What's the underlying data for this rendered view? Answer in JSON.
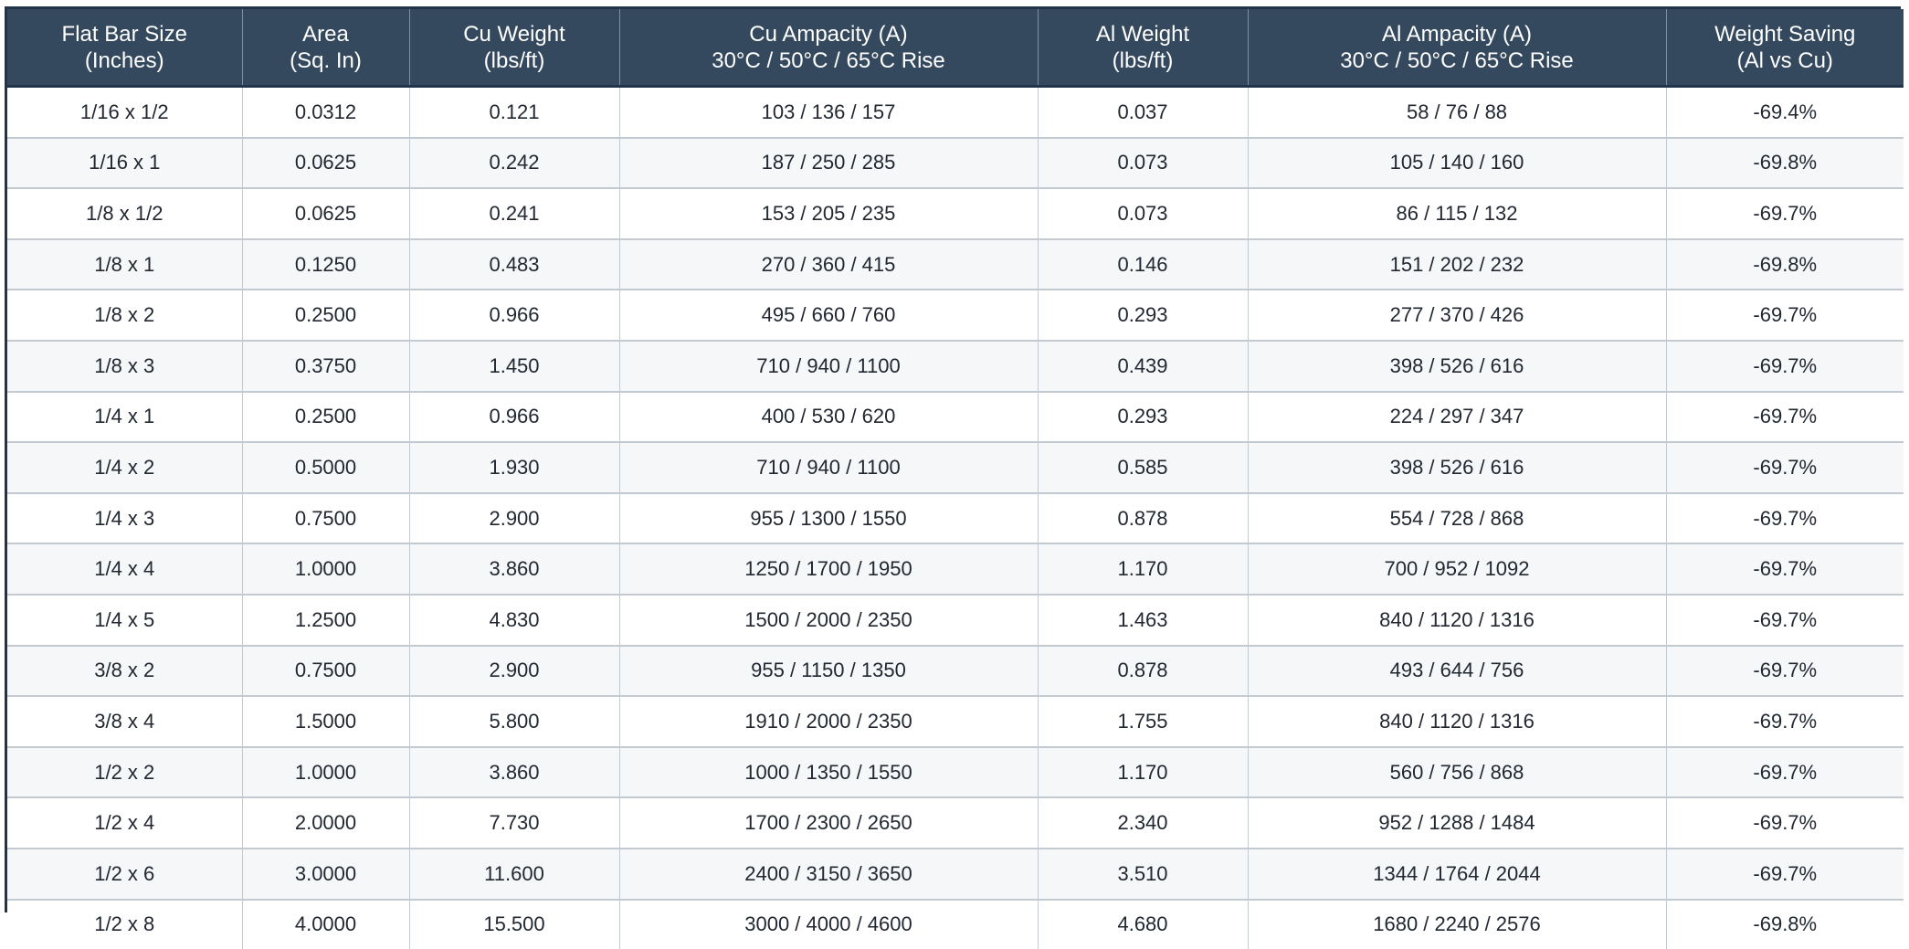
{
  "headers": [
    {
      "line1": "Flat Bar Size",
      "line2": "(Inches)"
    },
    {
      "line1": "Area",
      "line2": "(Sq. In)"
    },
    {
      "line1": "Cu Weight",
      "line2": "(lbs/ft)"
    },
    {
      "line1": "Cu Ampacity (A)",
      "line2": "30°C / 50°C / 65°C Rise"
    },
    {
      "line1": "Al Weight",
      "line2": "(lbs/ft)"
    },
    {
      "line1": "Al Ampacity (A)",
      "line2": "30°C / 50°C / 65°C Rise"
    },
    {
      "line1": "Weight Saving",
      "line2": "(Al vs Cu)"
    }
  ],
  "rows": [
    [
      "1/16 x 1/2",
      "0.0312",
      "0.121",
      "103 / 136 / 157",
      "0.037",
      "58 / 76 / 88",
      "-69.4%"
    ],
    [
      "1/16 x 1",
      "0.0625",
      "0.242",
      "187 / 250 / 285",
      "0.073",
      "105 / 140 / 160",
      "-69.8%"
    ],
    [
      "1/8 x 1/2",
      "0.0625",
      "0.241",
      "153 / 205 / 235",
      "0.073",
      "86 / 115 / 132",
      "-69.7%"
    ],
    [
      "1/8 x 1",
      "0.1250",
      "0.483",
      "270 / 360 / 415",
      "0.146",
      "151 / 202 / 232",
      "-69.8%"
    ],
    [
      "1/8 x 2",
      "0.2500",
      "0.966",
      "495 / 660 / 760",
      "0.293",
      "277 / 370 / 426",
      "-69.7%"
    ],
    [
      "1/8 x 3",
      "0.3750",
      "1.450",
      "710 / 940 / 1100",
      "0.439",
      "398 / 526 / 616",
      "-69.7%"
    ],
    [
      "1/4 x 1",
      "0.2500",
      "0.966",
      "400 / 530 / 620",
      "0.293",
      "224 / 297 / 347",
      "-69.7%"
    ],
    [
      "1/4 x 2",
      "0.5000",
      "1.930",
      "710 / 940 / 1100",
      "0.585",
      "398 / 526 / 616",
      "-69.7%"
    ],
    [
      "1/4 x 3",
      "0.7500",
      "2.900",
      "955 / 1300 / 1550",
      "0.878",
      "554 / 728 / 868",
      "-69.7%"
    ],
    [
      "1/4 x 4",
      "1.0000",
      "3.860",
      "1250 / 1700 / 1950",
      "1.170",
      "700 / 952 / 1092",
      "-69.7%"
    ],
    [
      "1/4 x 5",
      "1.2500",
      "4.830",
      "1500 / 2000 / 2350",
      "1.463",
      "840 / 1120 / 1316",
      "-69.7%"
    ],
    [
      "3/8 x 2",
      "0.7500",
      "2.900",
      "955 / 1150 / 1350",
      "0.878",
      "493 / 644 / 756",
      "-69.7%"
    ],
    [
      "3/8 x 4",
      "1.5000",
      "5.800",
      "1910 / 2000 / 2350",
      "1.755",
      "840 / 1120 / 1316",
      "-69.7%"
    ],
    [
      "1/2 x 2",
      "1.0000",
      "3.860",
      "1000 / 1350 / 1550",
      "1.170",
      "560 / 756 / 868",
      "-69.7%"
    ],
    [
      "1/2 x 4",
      "2.0000",
      "7.730",
      "1700 / 2300 / 2650",
      "2.340",
      "952 / 1288 / 1484",
      "-69.7%"
    ],
    [
      "1/2 x 6",
      "3.0000",
      "11.600",
      "2400 / 3150 / 3650",
      "3.510",
      "1344 / 1764 / 2044",
      "-69.7%"
    ],
    [
      "1/2 x 8",
      "4.0000",
      "15.500",
      "3000 / 4000 / 4600",
      "4.680",
      "1680 / 2240 / 2576",
      "-69.8%"
    ]
  ]
}
